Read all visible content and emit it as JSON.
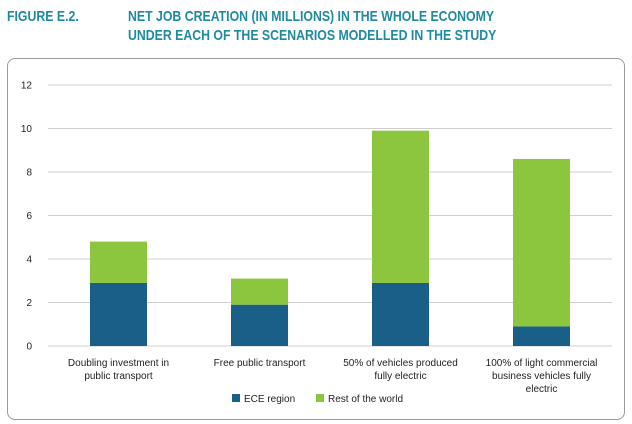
{
  "figure": {
    "label": "FIGURE E.2.",
    "title_line1": "NET JOB CREATION (IN MILLIONS) IN THE WHOLE ECONOMY",
    "title_line2": "UNDER EACH OF THE SCENARIOS MODELLED IN THE STUDY"
  },
  "colors": {
    "title": "#1e8aa0",
    "ece": "#1a5f87",
    "rest": "#8cc63f",
    "grid": "#cfcfcf"
  },
  "chart_data": {
    "type": "bar",
    "stacked": true,
    "categories": [
      [
        "Doubling investment in",
        "public transport"
      ],
      [
        "Free public transport"
      ],
      [
        "50% of vehicles produced",
        "fully electric"
      ],
      [
        "100% of light commercial",
        "business vehicles fully",
        "electric"
      ]
    ],
    "series": [
      {
        "name": "ECE region",
        "values": [
          2.9,
          1.9,
          2.9,
          0.9
        ]
      },
      {
        "name": "Rest of the world",
        "values": [
          1.9,
          1.2,
          7.0,
          7.7
        ]
      }
    ],
    "yticks": [
      "0",
      "2",
      "4",
      "6",
      "8",
      "10",
      "12"
    ],
    "ylim": [
      0,
      12
    ],
    "grid": true,
    "legend_position": "bottom"
  }
}
